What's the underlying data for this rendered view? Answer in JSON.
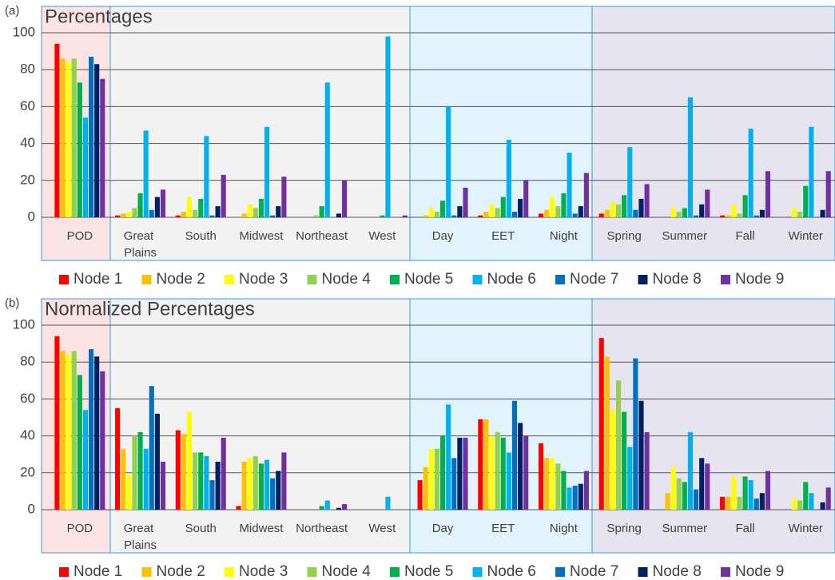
{
  "chart_data": [
    {
      "type": "bar",
      "panel_label": "(a)",
      "title": "Percentages",
      "categories": [
        "POD",
        "Great Plains",
        "South",
        "Midwest",
        "Northeast",
        "West",
        "Day",
        "EET",
        "Night",
        "Spring",
        "Summer",
        "Fall",
        "Winter"
      ],
      "series": [
        {
          "name": "Node 1",
          "color": "#ff0000",
          "values": [
            94,
            1,
            1,
            0,
            0,
            0,
            0,
            1,
            2,
            2,
            0,
            1,
            0
          ]
        },
        {
          "name": "Node 2",
          "color": "#ffc000",
          "values": [
            86,
            2,
            3,
            2,
            0,
            0,
            1,
            3,
            4,
            4,
            0,
            1,
            0
          ]
        },
        {
          "name": "Node 3",
          "color": "#ffff00",
          "values": [
            84,
            3,
            11,
            7,
            0,
            0,
            5,
            7,
            11,
            8,
            5,
            7,
            5
          ]
        },
        {
          "name": "Node 4",
          "color": "#92d050",
          "values": [
            86,
            5,
            4,
            5,
            1,
            0,
            3,
            5,
            6,
            7,
            3,
            2,
            3
          ]
        },
        {
          "name": "Node 5",
          "color": "#00b050",
          "values": [
            73,
            13,
            10,
            10,
            6,
            1,
            9,
            11,
            13,
            12,
            5,
            12,
            17
          ]
        },
        {
          "name": "Node 6",
          "color": "#00b0f0",
          "values": [
            54,
            47,
            44,
            49,
            73,
            98,
            60,
            42,
            35,
            38,
            65,
            48,
            49
          ]
        },
        {
          "name": "Node 7",
          "color": "#0070c0",
          "values": [
            87,
            4,
            1,
            1,
            0,
            0,
            1,
            3,
            2,
            4,
            1,
            1,
            0
          ]
        },
        {
          "name": "Node 8",
          "color": "#002060",
          "values": [
            83,
            11,
            6,
            6,
            2,
            0,
            6,
            10,
            6,
            10,
            7,
            4,
            4
          ]
        },
        {
          "name": "Node 9",
          "color": "#7030a0",
          "values": [
            75,
            15,
            23,
            22,
            20,
            1,
            16,
            20,
            24,
            18,
            15,
            25,
            25
          ]
        }
      ],
      "ylim": [
        0,
        100
      ],
      "yticks": [
        0,
        20,
        40,
        60,
        80,
        100
      ],
      "grid": true
    },
    {
      "type": "bar",
      "panel_label": "(b)",
      "title": "Normalized Percentages",
      "categories": [
        "POD",
        "Great Plains",
        "South",
        "Midwest",
        "Northeast",
        "West",
        "Day",
        "EET",
        "Night",
        "Spring",
        "Summer",
        "Fall",
        "Winter"
      ],
      "series": [
        {
          "name": "Node 1",
          "color": "#ff0000",
          "values": [
            94,
            55,
            43,
            2,
            0,
            0,
            16,
            49,
            36,
            93,
            0,
            7,
            0
          ]
        },
        {
          "name": "Node 2",
          "color": "#ffc000",
          "values": [
            86,
            33,
            41,
            26,
            0,
            0,
            23,
            49,
            28,
            83,
            9,
            7,
            0
          ]
        },
        {
          "name": "Node 3",
          "color": "#ffff00",
          "values": [
            84,
            19,
            53,
            28,
            0,
            0,
            33,
            40,
            28,
            54,
            23,
            18,
            6
          ]
        },
        {
          "name": "Node 4",
          "color": "#92d050",
          "values": [
            86,
            40,
            31,
            29,
            0,
            0,
            33,
            42,
            25,
            70,
            17,
            7,
            5
          ]
        },
        {
          "name": "Node 5",
          "color": "#00b050",
          "values": [
            73,
            42,
            31,
            25,
            2,
            0,
            40,
            39,
            21,
            53,
            15,
            18,
            15
          ]
        },
        {
          "name": "Node 6",
          "color": "#00b0f0",
          "values": [
            54,
            33,
            29,
            27,
            5,
            7,
            57,
            31,
            12,
            34,
            42,
            16,
            9
          ]
        },
        {
          "name": "Node 7",
          "color": "#0070c0",
          "values": [
            87,
            67,
            16,
            17,
            0,
            0,
            28,
            59,
            13,
            82,
            11,
            6,
            0
          ]
        },
        {
          "name": "Node 8",
          "color": "#002060",
          "values": [
            83,
            52,
            26,
            21,
            1,
            0,
            39,
            47,
            14,
            59,
            28,
            9,
            4
          ]
        },
        {
          "name": "Node 9",
          "color": "#7030a0",
          "values": [
            75,
            26,
            39,
            31,
            3,
            0,
            39,
            40,
            21,
            42,
            25,
            21,
            12
          ]
        }
      ],
      "ylim": [
        0,
        100
      ],
      "yticks": [
        0,
        20,
        40,
        60,
        80,
        100
      ],
      "grid": true
    }
  ]
}
